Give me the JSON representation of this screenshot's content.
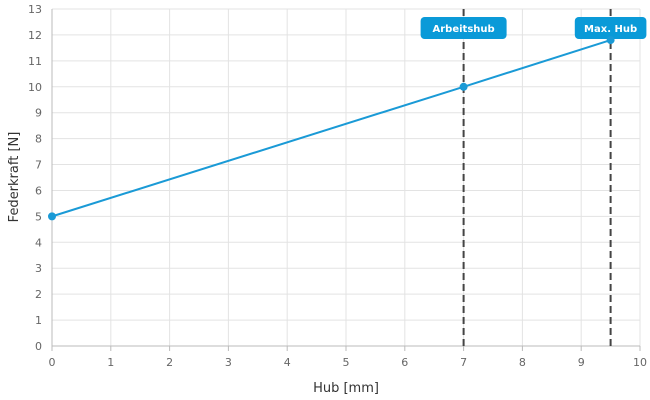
{
  "chart_data": {
    "type": "line",
    "xlabel": "Hub [mm]",
    "ylabel": "Federkraft [N]",
    "xlim": [
      0,
      10
    ],
    "ylim": [
      0,
      13
    ],
    "x_ticks": [
      "0",
      "1",
      "2",
      "3",
      "4",
      "5",
      "6",
      "7",
      "8",
      "9",
      "10"
    ],
    "y_ticks": [
      "0",
      "1",
      "2",
      "3",
      "4",
      "5",
      "6",
      "7",
      "8",
      "9",
      "10",
      "11",
      "12",
      "13"
    ],
    "grid": true,
    "series": [
      {
        "x": [
          0,
          7,
          9.5
        ],
        "y": [
          5,
          10,
          11.8
        ],
        "color": "#1a9ad6"
      }
    ],
    "annotations": [
      {
        "label": "Arbeitshub",
        "x": 7,
        "y": 10
      },
      {
        "label": "Max. Hub",
        "x": 9.5,
        "y": 11.8
      }
    ],
    "colors": {
      "line": "#1a9ad6",
      "marker_badge": "#0a9ad8",
      "grid": "#e3e3e3",
      "dashed": "#444444"
    }
  }
}
